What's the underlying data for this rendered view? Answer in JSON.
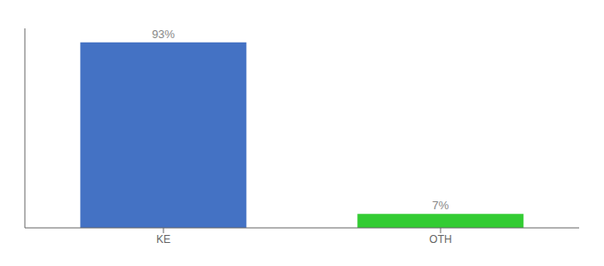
{
  "chart_data": {
    "type": "bar",
    "categories": [
      "KE",
      "OTH"
    ],
    "values": [
      93,
      7
    ],
    "colors": [
      "#4472c4",
      "#33cc33"
    ],
    "data_labels": true,
    "value_labels": [
      "93%",
      "7%"
    ],
    "ylim": [
      0,
      100
    ],
    "tick_labels": "x",
    "grid": false
  }
}
